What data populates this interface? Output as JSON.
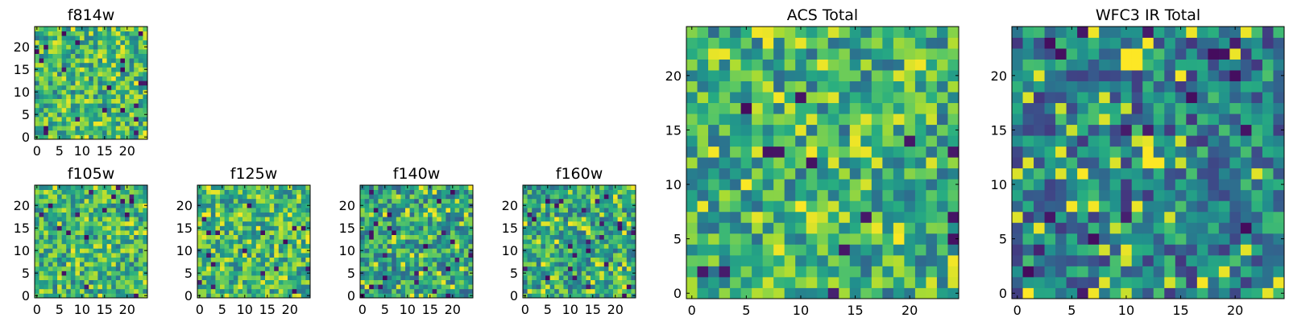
{
  "chart_data": [
    {
      "type": "heatmap",
      "title": "f814w",
      "grid_size": [
        25,
        25
      ],
      "colormap": "viridis",
      "x_ticks": [
        0,
        5,
        10,
        15,
        20
      ],
      "y_ticks": [
        0,
        5,
        10,
        15,
        20
      ],
      "xlim": [
        0,
        25
      ],
      "ylim": [
        0,
        25
      ],
      "values_description": "noise-like per-pixel values normalized 0-1; high values (yellow) dominate"
    },
    {
      "type": "heatmap",
      "title": "f105w",
      "grid_size": [
        25,
        25
      ],
      "colormap": "viridis",
      "x_ticks": [
        0,
        5,
        10,
        15,
        20
      ],
      "y_ticks": [
        0,
        5,
        10,
        15,
        20
      ],
      "xlim": [
        0,
        25
      ],
      "ylim": [
        0,
        25
      ]
    },
    {
      "type": "heatmap",
      "title": "f125w",
      "grid_size": [
        25,
        25
      ],
      "colormap": "viridis",
      "x_ticks": [
        0,
        5,
        10,
        15,
        20
      ],
      "y_ticks": [
        0,
        5,
        10,
        15,
        20
      ],
      "xlim": [
        0,
        25
      ],
      "ylim": [
        0,
        25
      ]
    },
    {
      "type": "heatmap",
      "title": "f140w",
      "grid_size": [
        25,
        25
      ],
      "colormap": "viridis",
      "x_ticks": [
        0,
        5,
        10,
        15,
        20
      ],
      "y_ticks": [
        0,
        5,
        10,
        15,
        20
      ],
      "xlim": [
        0,
        25
      ],
      "ylim": [
        0,
        25
      ]
    },
    {
      "type": "heatmap",
      "title": "f160w",
      "grid_size": [
        25,
        25
      ],
      "colormap": "viridis",
      "x_ticks": [
        0,
        5,
        10,
        15,
        20
      ],
      "y_ticks": [
        0,
        5,
        10,
        15,
        20
      ],
      "xlim": [
        0,
        25
      ],
      "ylim": [
        0,
        25
      ]
    },
    {
      "type": "heatmap",
      "title": "ACS Total",
      "grid_size": [
        25,
        25
      ],
      "colormap": "viridis",
      "x_ticks": [
        0,
        5,
        10,
        15,
        20
      ],
      "y_ticks": [
        0,
        5,
        10,
        15,
        20
      ],
      "xlim": [
        0,
        25
      ],
      "ylim": [
        0,
        25
      ]
    },
    {
      "type": "heatmap",
      "title": "WFC3 IR Total",
      "grid_size": [
        25,
        25
      ],
      "colormap": "viridis",
      "x_ticks": [
        0,
        5,
        10,
        15,
        20
      ],
      "y_ticks": [
        0,
        5,
        10,
        15,
        20
      ],
      "xlim": [
        0,
        25
      ],
      "ylim": [
        0,
        25
      ],
      "highlights": [
        {
          "x": 10,
          "y": 21,
          "value": 1.0
        },
        {
          "x": 11,
          "y": 21,
          "value": 1.0
        },
        {
          "x": 10,
          "y": 22,
          "value": 1.0
        },
        {
          "x": 11,
          "y": 22,
          "value": 1.0
        },
        {
          "x": 12,
          "y": 12,
          "value": 1.0
        },
        {
          "x": 13,
          "y": 12,
          "value": 1.0
        },
        {
          "x": 12,
          "y": 13,
          "value": 1.0
        }
      ]
    }
  ]
}
